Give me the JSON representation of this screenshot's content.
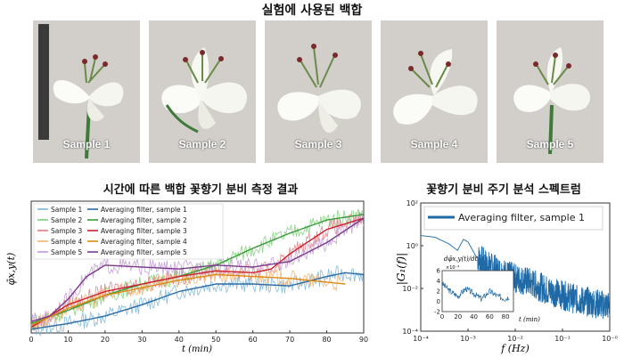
{
  "top_title": "실험에 사용된 백합",
  "photos": [
    {
      "caption": "Sample 1"
    },
    {
      "caption": "Sample 2"
    },
    {
      "caption": "Sample 3"
    },
    {
      "caption": "Sample 4"
    },
    {
      "caption": "Sample 5"
    }
  ],
  "colors": {
    "raw": [
      "#7ab6d8",
      "#7fcf7a",
      "#e27a82",
      "#f5b36a",
      "#c29ad8"
    ],
    "avg": [
      "#2b6aa3",
      "#3a9a3a",
      "#c8202d",
      "#d98a16",
      "#7a3a8a"
    ],
    "spectrum": "#1f6aa6"
  },
  "chart_data": [
    {
      "type": "line",
      "title": "시간에 따른 백합 꽃향기 분비 측정 결과",
      "xlabel": "t (min)",
      "ylabel": "φ̄x,y(t)",
      "xlim": [
        0,
        90
      ],
      "xticks": [
        "0",
        "10",
        "20",
        "30",
        "40",
        "50",
        "60",
        "70",
        "80",
        "90"
      ],
      "legend": [
        "Sample 1",
        "Sample 2",
        "Sample 3",
        "Sample 4",
        "Sample 5",
        "Averaging filter, sample 1",
        "Averaging filter, sample 2",
        "Averaging filter, sample 3",
        "Averaging filter, sample 4",
        "Averaging filter, sample 5"
      ],
      "legend_position": "top-left",
      "series_avg": [
        {
          "x": [
            0,
            10,
            20,
            30,
            40,
            50,
            60,
            70,
            80,
            85,
            90
          ],
          "y": [
            0.2,
            0.5,
            0.9,
            1.5,
            2.2,
            2.6,
            2.6,
            2.5,
            3.0,
            3.2,
            3.1
          ]
        },
        {
          "x": [
            0,
            10,
            20,
            30,
            40,
            50,
            60,
            70,
            80,
            90
          ],
          "y": [
            0.5,
            1.2,
            2.0,
            2.6,
            3.0,
            3.6,
            4.5,
            5.3,
            6.0,
            6.3
          ]
        },
        {
          "x": [
            0,
            10,
            20,
            30,
            40,
            50,
            60,
            65,
            70,
            80,
            90
          ],
          "y": [
            0.3,
            1.5,
            2.2,
            2.6,
            3.0,
            3.3,
            3.2,
            3.4,
            4.2,
            5.5,
            6.1
          ]
        },
        {
          "x": [
            0,
            10,
            20,
            30,
            40,
            50,
            60,
            70,
            80,
            85
          ],
          "y": [
            0.4,
            1.3,
            2.0,
            2.4,
            2.8,
            3.1,
            3.0,
            2.9,
            2.7,
            2.6
          ]
        },
        {
          "x": [
            0,
            5,
            10,
            15,
            20,
            30,
            40,
            50,
            60,
            70,
            80,
            90
          ],
          "y": [
            0.6,
            0.9,
            1.8,
            3.0,
            3.6,
            3.5,
            3.4,
            3.6,
            3.5,
            3.8,
            4.8,
            6.1
          ]
        }
      ],
      "ylim": [
        0,
        7
      ]
    },
    {
      "type": "line",
      "title": "꽃향기 분비 주기 분석 스펙트럼",
      "xlabel": "f (Hz)",
      "ylabel": "|G₁(f)|",
      "xscale": "log",
      "yscale": "log",
      "xlim": [
        0.0001,
        1
      ],
      "ylim": [
        0.0001,
        100
      ],
      "xticks": [
        "10⁻⁴",
        "10⁻³",
        "10⁻²",
        "10⁻¹",
        "10⁻⁰"
      ],
      "yticks": [
        "10²",
        "10⁰",
        "10⁻²",
        "10⁻⁴"
      ],
      "legend": [
        "Averaging filter, sample 1"
      ],
      "legend_position": "top-right",
      "series": [
        {
          "x": [
            0.0001,
            0.0002,
            0.0004,
            0.0006,
            0.0008,
            0.001,
            0.0015,
            0.002,
            0.003,
            0.005,
            0.01,
            0.02,
            0.05,
            0.1,
            0.2,
            0.5,
            1.0
          ],
          "y": [
            3,
            2.5,
            1.2,
            0.6,
            2.0,
            1.5,
            0.3,
            0.2,
            0.1,
            0.06,
            0.03,
            0.02,
            0.008,
            0.005,
            0.003,
            0.002,
            0.0015
          ]
        }
      ],
      "inset": {
        "ylabel": "dφ̄x,y(t)/dt",
        "scale_label": "×10⁻⁴",
        "xlabel": "t (min)",
        "xticks": [
          "0",
          "20",
          "40",
          "60",
          "80"
        ],
        "yticks": [
          "6",
          "4",
          "2",
          "0",
          "-2"
        ],
        "x": [
          0,
          10,
          20,
          30,
          40,
          50,
          60,
          70,
          80,
          85
        ],
        "y": [
          3.5,
          2.0,
          1.0,
          2.5,
          1.5,
          0.5,
          2.0,
          1.0,
          0.5,
          1.0
        ]
      }
    }
  ]
}
